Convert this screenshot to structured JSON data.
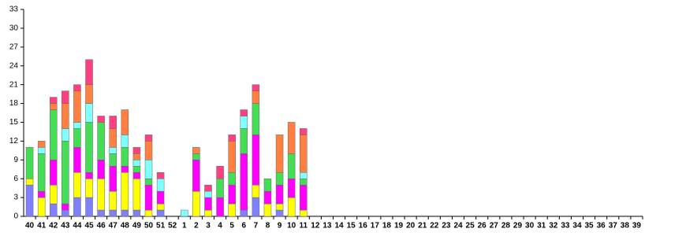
{
  "chart_data": {
    "type": "stacked_bar",
    "categories": [
      "40",
      "41",
      "42",
      "43",
      "44",
      "45",
      "46",
      "47",
      "48",
      "49",
      "50",
      "51",
      "52",
      "1",
      "2",
      "3",
      "4",
      "5",
      "6",
      "7",
      "8",
      "9",
      "10",
      "11",
      "12",
      "13",
      "14",
      "15",
      "16",
      "17",
      "18",
      "19",
      "20",
      "21",
      "22",
      "23",
      "24",
      "25",
      "26",
      "27",
      "28",
      "29",
      "30",
      "31",
      "32",
      "33",
      "34",
      "35",
      "36",
      "37",
      "38",
      "39"
    ],
    "series": [
      {
        "color": "#8080ff",
        "values": [
          5,
          0,
          2,
          1,
          3,
          3,
          1,
          1,
          1,
          1,
          0,
          1,
          0,
          0,
          0,
          0,
          0,
          0,
          1,
          3,
          0,
          1,
          0,
          0,
          0,
          0,
          0,
          0,
          0,
          0,
          0,
          0,
          0,
          0,
          0,
          0,
          0,
          0,
          0,
          0,
          0,
          0,
          0,
          0,
          0,
          0,
          0,
          0,
          0,
          0,
          0,
          0
        ]
      },
      {
        "color": "#ffff00",
        "values": [
          1,
          3,
          3,
          0,
          4,
          3,
          5,
          3,
          6,
          5,
          1,
          1,
          0,
          0,
          4,
          1,
          0,
          2,
          0,
          2,
          2,
          1,
          3,
          1,
          0,
          0,
          0,
          0,
          0,
          0,
          0,
          0,
          0,
          0,
          0,
          0,
          0,
          0,
          0,
          0,
          0,
          0,
          0,
          0,
          0,
          0,
          0,
          0,
          0,
          0,
          0,
          0
        ]
      },
      {
        "color": "#ff00ff",
        "values": [
          0,
          1,
          4,
          1,
          4,
          1,
          3,
          4,
          1,
          1,
          4,
          2,
          0,
          0,
          5,
          2,
          3,
          3,
          9,
          8,
          2,
          3,
          3,
          4,
          0,
          0,
          0,
          0,
          0,
          0,
          0,
          0,
          0,
          0,
          0,
          0,
          0,
          0,
          0,
          0,
          0,
          0,
          0,
          0,
          0,
          0,
          0,
          0,
          0,
          0,
          0,
          0
        ]
      },
      {
        "color": "#44dd55",
        "values": [
          5,
          6,
          8,
          10,
          3,
          8,
          6,
          2,
          3,
          1,
          1,
          0,
          0,
          0,
          1,
          0,
          3,
          2,
          4,
          5,
          2,
          2,
          4,
          1,
          0,
          0,
          0,
          0,
          0,
          0,
          0,
          0,
          0,
          0,
          0,
          0,
          0,
          0,
          0,
          0,
          0,
          0,
          0,
          0,
          0,
          0,
          0,
          0,
          0,
          0,
          0,
          0
        ]
      },
      {
        "color": "#80ffff",
        "values": [
          0,
          1,
          0,
          2,
          1,
          3,
          0,
          1,
          2,
          1,
          3,
          2,
          0,
          1,
          0,
          1,
          0,
          0,
          2,
          0,
          0,
          0,
          0,
          1,
          0,
          0,
          0,
          0,
          0,
          0,
          0,
          0,
          0,
          0,
          0,
          0,
          0,
          0,
          0,
          0,
          0,
          0,
          0,
          0,
          0,
          0,
          0,
          0,
          0,
          0,
          0,
          0
        ]
      },
      {
        "color": "#ff8040",
        "values": [
          0,
          1,
          1,
          4,
          5,
          3,
          0,
          3,
          4,
          1,
          3,
          0,
          0,
          0,
          1,
          0,
          0,
          5,
          0,
          2,
          0,
          6,
          5,
          6,
          0,
          0,
          0,
          0,
          0,
          0,
          0,
          0,
          0,
          0,
          0,
          0,
          0,
          0,
          0,
          0,
          0,
          0,
          0,
          0,
          0,
          0,
          0,
          0,
          0,
          0,
          0,
          0
        ]
      },
      {
        "color": "#ff4080",
        "values": [
          0,
          0,
          1,
          2,
          1,
          4,
          1,
          2,
          0,
          1,
          1,
          1,
          0,
          0,
          0,
          1,
          2,
          1,
          1,
          1,
          0,
          0,
          0,
          1,
          0,
          0,
          0,
          0,
          0,
          0,
          0,
          0,
          0,
          0,
          0,
          0,
          0,
          0,
          0,
          0,
          0,
          0,
          0,
          0,
          0,
          0,
          0,
          0,
          0,
          0,
          0,
          0
        ]
      }
    ],
    "ylim": [
      0,
      33
    ],
    "yticks": [
      0,
      3,
      6,
      9,
      12,
      15,
      18,
      21,
      24,
      27,
      30,
      33
    ]
  }
}
